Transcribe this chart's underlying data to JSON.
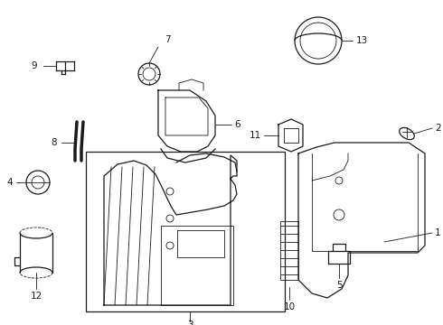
{
  "bg_color": "#ffffff",
  "line_color": "#1a1a1a",
  "fig_width": 4.9,
  "fig_height": 3.6,
  "dpi": 100,
  "fontsize": 7.5
}
